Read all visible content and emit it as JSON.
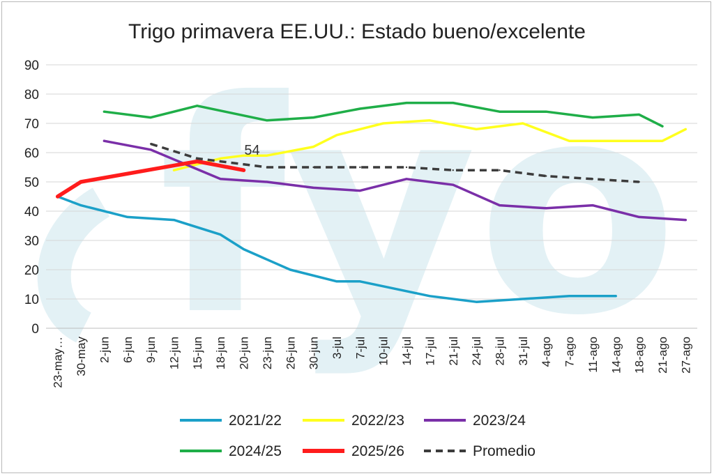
{
  "chart_data": {
    "type": "line",
    "title": "Trigo primavera EE.UU.: Estado bueno/excelente",
    "xlabel": "",
    "ylabel": "",
    "ylim": [
      0,
      90
    ],
    "yticks": [
      0,
      10,
      20,
      30,
      40,
      50,
      60,
      70,
      80,
      90
    ],
    "grid": true,
    "legend": "bottom",
    "watermark": "fyo",
    "categories": [
      "23-may…",
      "30-may",
      "2-jun",
      "6-jun",
      "9-jun",
      "12-jun",
      "15-jun",
      "18-jun",
      "20-jun",
      "23-jun",
      "26-jun",
      "30-jun",
      "3-jul",
      "7-jul",
      "10-jul",
      "14-jul",
      "17-jul",
      "21-jul",
      "24-jul",
      "28-jul",
      "31-jul",
      "4-ago",
      "7-ago",
      "11-ago",
      "14-ago",
      "18-ago",
      "21-ago",
      "27-ago"
    ],
    "series": [
      {
        "name": "2021/22",
        "color": "#1ba0c8",
        "dash": false,
        "width": 3.5,
        "values": [
          45,
          42,
          null,
          38,
          null,
          37,
          null,
          32,
          27,
          null,
          20,
          null,
          16,
          16,
          null,
          null,
          11,
          null,
          9,
          null,
          null,
          null,
          11,
          null,
          11,
          null,
          null,
          null
        ]
      },
      {
        "name": "2022/23",
        "color": "#ffff1e",
        "dash": false,
        "width": 3.5,
        "values": [
          null,
          null,
          null,
          null,
          null,
          54,
          56,
          58,
          59,
          59,
          null,
          62,
          66,
          null,
          70,
          null,
          71,
          null,
          68,
          null,
          70,
          null,
          64,
          null,
          64,
          null,
          64,
          68
        ]
      },
      {
        "name": "2023/24",
        "color": "#7a2fa8",
        "dash": false,
        "width": 3.5,
        "values": [
          null,
          null,
          64,
          null,
          61,
          null,
          null,
          51,
          null,
          50,
          null,
          48,
          null,
          47,
          null,
          51,
          null,
          49,
          null,
          42,
          null,
          41,
          null,
          42,
          null,
          38,
          null,
          37
        ]
      },
      {
        "name": "2024/25",
        "color": "#1fae48",
        "dash": false,
        "width": 3.5,
        "values": [
          null,
          null,
          74,
          null,
          72,
          null,
          76,
          null,
          null,
          71,
          null,
          72,
          null,
          75,
          null,
          77,
          null,
          77,
          null,
          74,
          null,
          74,
          null,
          72,
          null,
          73,
          69,
          null
        ]
      },
      {
        "name": "2025/26",
        "color": "#ff1c1c",
        "dash": false,
        "width": 5.5,
        "values": [
          45,
          50,
          null,
          null,
          null,
          null,
          57,
          null,
          54,
          null,
          null,
          null,
          null,
          null,
          null,
          null,
          null,
          null,
          null,
          null,
          null,
          null,
          null,
          null,
          null,
          null,
          null,
          null
        ]
      },
      {
        "name": "Promedio",
        "color": "#3c3c3c",
        "dash": true,
        "width": 3.5,
        "values": [
          null,
          null,
          null,
          null,
          63,
          null,
          58,
          57,
          null,
          55,
          null,
          55,
          null,
          55,
          null,
          55,
          null,
          54,
          null,
          54,
          null,
          52,
          null,
          51,
          null,
          50,
          null,
          null
        ]
      }
    ],
    "annotations": [
      {
        "text": "54",
        "category": "20-jun",
        "value": 54
      }
    ]
  }
}
